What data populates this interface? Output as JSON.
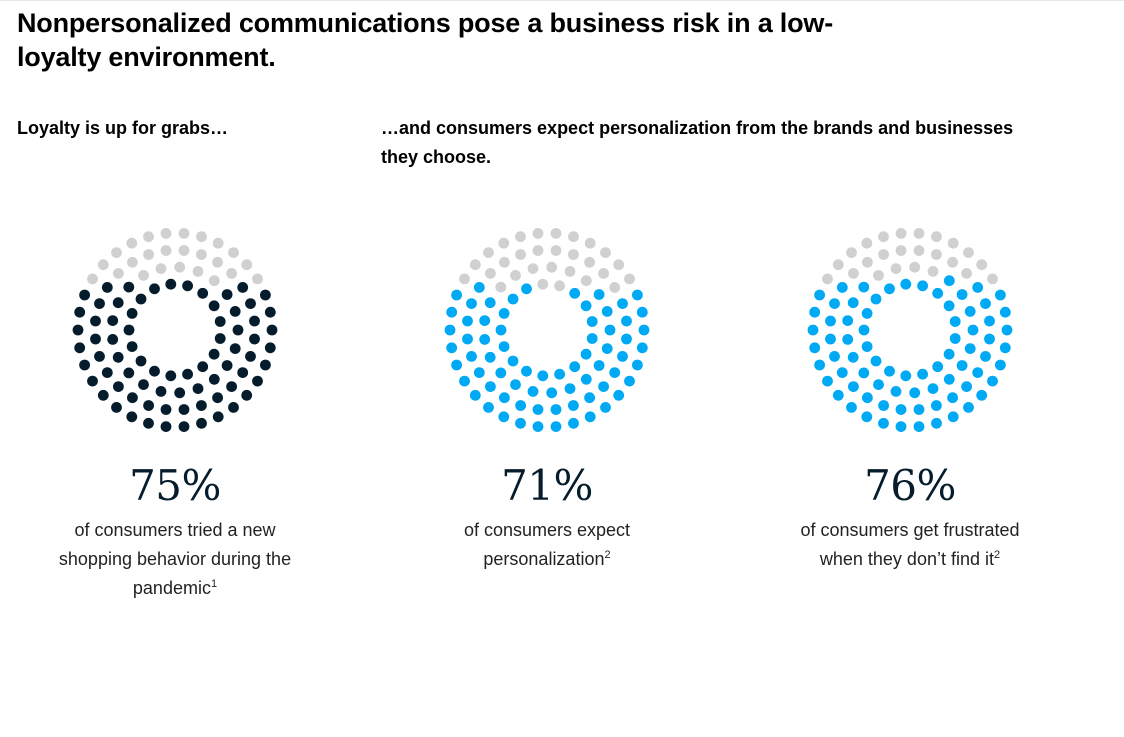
{
  "title": "Nonpersonalized communications pose a business risk in a low-loyalty environment.",
  "subheads": {
    "left": "Loyalty is up for grabs…",
    "right": "…and consumers expect personalization from the brands and businesses they choose."
  },
  "colors": {
    "navy": "#051c2c",
    "cyan": "#00a9f4",
    "gray": "#d0d0d0"
  },
  "chart_data": [
    {
      "type": "dot-donut",
      "value": 75,
      "unit": "%",
      "label": "75%",
      "description": "of consumers tried a new shopping behavior during the pandemic",
      "footnote": "1",
      "fill_color": "#051c2c"
    },
    {
      "type": "dot-donut",
      "value": 71,
      "unit": "%",
      "label": "71%",
      "description": "of consumers expect personalization",
      "footnote": "2",
      "fill_color": "#00a9f4"
    },
    {
      "type": "dot-donut",
      "value": 76,
      "unit": "%",
      "label": "76%",
      "description": "of consumers get frustrated when they don’t find it",
      "footnote": "2",
      "fill_color": "#00a9f4"
    }
  ]
}
